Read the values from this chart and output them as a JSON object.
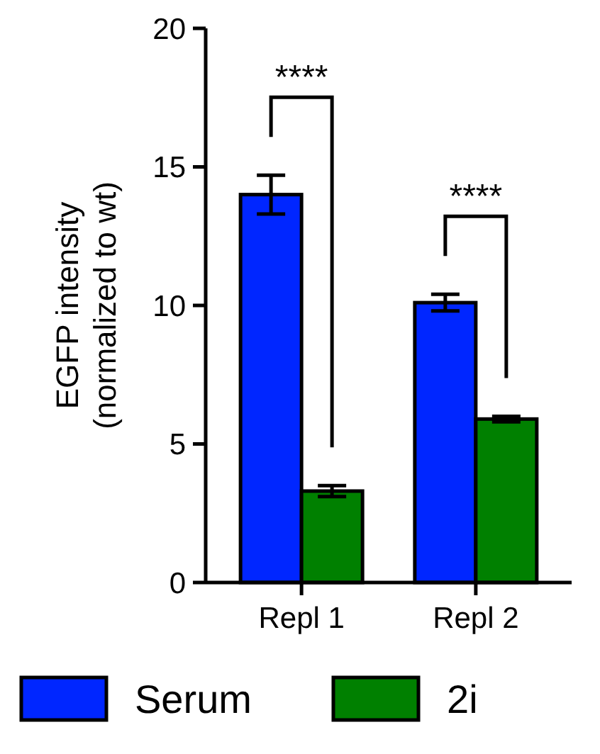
{
  "chart_data": {
    "type": "bar",
    "ylabel": "EGFP intensity\n(normalized to wt)",
    "categories": [
      "Repl 1",
      "Repl 2"
    ],
    "series": [
      {
        "name": "Serum",
        "color": "#0026ff",
        "values": [
          14.0,
          10.1
        ],
        "errors": [
          0.7,
          0.3
        ]
      },
      {
        "name": "2i",
        "color": "#008000",
        "values": [
          3.3,
          5.9
        ],
        "errors": [
          0.2,
          0.1
        ]
      }
    ],
    "ylim": [
      0,
      20
    ],
    "yticks": [
      0,
      5,
      10,
      15,
      20
    ],
    "grid": false,
    "legend": "bottom",
    "annotations": [
      "****",
      "****"
    ]
  }
}
